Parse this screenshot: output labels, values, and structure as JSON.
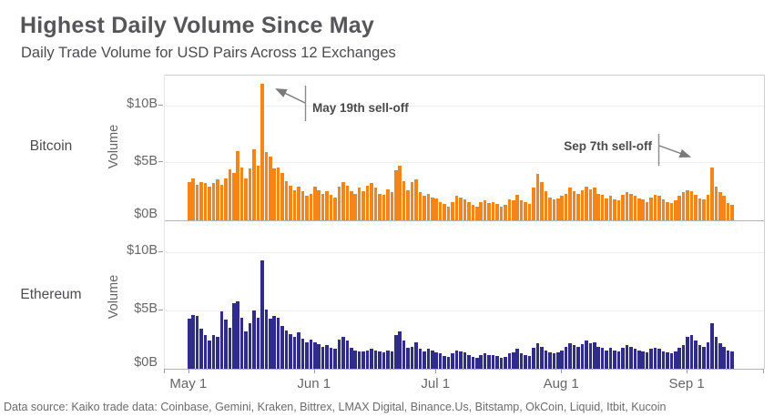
{
  "header": {
    "title": "Highest Daily Volume Since May",
    "subtitle": "Daily Trade Volume for USD Pairs Across 12 Exchanges"
  },
  "footer": {
    "text": "Data source: Kaiko trade data: Coinbase, Gemini, Kraken, Bittrex, LMAX Digital, Binance.Us, Bitstamp, OkCoin, Liquid, Itbit, Kucoin"
  },
  "colors": {
    "bitcoin": "#F58518",
    "ethereum": "#2F2C8B",
    "grid": "#EFEFEF",
    "axis": "#B3B3B3",
    "arrow": "#7A7A7A",
    "text": "#666666"
  },
  "chart_data": [
    {
      "type": "bar",
      "name": "bitcoin-daily-volume",
      "row_label": "Bitcoin",
      "ylabel": "Volume",
      "unit": "$B",
      "yticks": [
        "$10B",
        "$5B",
        "$0B"
      ],
      "ylim": [
        0,
        12.5
      ],
      "x_start": "May 1",
      "xticks": [
        "May 1",
        "Jun 1",
        "Jul 1",
        "Aug 1",
        "Sep 1"
      ],
      "xtick_days": [
        0,
        31,
        61,
        92,
        123
      ],
      "annotation": {
        "label": "May 19th sell-off",
        "day": "May 19",
        "value": 11.8
      },
      "values": [
        3.3,
        3.6,
        3.1,
        3.3,
        3.2,
        2.9,
        3.2,
        3.5,
        3.1,
        3.6,
        4.4,
        4.1,
        6.0,
        4.6,
        3.6,
        4.5,
        6.1,
        4.7,
        11.8,
        5.9,
        5.5,
        4.5,
        4.6,
        4.1,
        3.4,
        3.0,
        2.6,
        2.9,
        2.5,
        2.1,
        2.3,
        2.9,
        2.6,
        2.3,
        2.5,
        2.2,
        2.0,
        2.9,
        3.3,
        3.0,
        2.5,
        2.3,
        2.8,
        2.5,
        3.0,
        3.2,
        2.8,
        2.3,
        2.2,
        2.7,
        2.4,
        4.3,
        4.7,
        3.4,
        2.6,
        3.3,
        3.5,
        2.4,
        2.1,
        2.3,
        2.0,
        1.9,
        1.6,
        1.4,
        1.2,
        1.6,
        2.1,
        2.0,
        1.8,
        1.6,
        1.3,
        1.2,
        1.6,
        1.7,
        1.5,
        1.6,
        1.4,
        1.2,
        1.3,
        1.8,
        1.7,
        2.2,
        1.7,
        1.6,
        1.4,
        2.8,
        4.0,
        3.3,
        2.5,
        2.0,
        1.8,
        1.9,
        2.1,
        2.3,
        2.8,
        2.5,
        2.3,
        2.6,
        2.9,
        2.7,
        2.8,
        2.3,
        2.2,
        1.9,
        2.1,
        1.8,
        1.7,
        2.2,
        2.4,
        2.3,
        2.1,
        1.9,
        1.8,
        1.6,
        2.0,
        2.2,
        2.1,
        1.8,
        1.6,
        1.5,
        1.7,
        2.1,
        2.4,
        2.6,
        2.5,
        2.2,
        1.9,
        1.8,
        2.2,
        4.6,
        2.9,
        2.4,
        2.1,
        1.5,
        1.3
      ]
    },
    {
      "type": "bar",
      "name": "ethereum-daily-volume",
      "row_label": "Ethereum",
      "ylabel": "Volume",
      "unit": "$B",
      "yticks": [
        "$10B",
        "$5B",
        "$0B"
      ],
      "ylim": [
        0,
        12.1
      ],
      "x_start": "May 1",
      "xticks": [
        "May 1",
        "Jun 1",
        "Jul 1",
        "Aug 1",
        "Sep 1"
      ],
      "xtick_days": [
        0,
        31,
        61,
        92,
        123
      ],
      "annotation": {
        "label": "Sep 7th sell-off",
        "day": "Sep 7",
        "value": 3.9
      },
      "values": [
        4.3,
        4.6,
        4.5,
        3.4,
        2.9,
        2.4,
        2.9,
        2.7,
        4.9,
        4.2,
        3.5,
        5.6,
        5.8,
        4.4,
        3.2,
        3.9,
        5.0,
        4.4,
        9.3,
        5.1,
        4.3,
        4.5,
        4.4,
        3.7,
        3.3,
        3.0,
        2.7,
        3.1,
        2.6,
        2.3,
        2.5,
        2.3,
        2.1,
        1.9,
        2.0,
        1.8,
        1.7,
        2.5,
        2.7,
        2.4,
        1.8,
        1.6,
        1.5,
        1.5,
        1.6,
        1.7,
        1.6,
        1.5,
        1.4,
        1.6,
        1.5,
        2.9,
        3.2,
        2.4,
        1.8,
        1.9,
        2.3,
        1.7,
        1.5,
        1.7,
        1.6,
        1.4,
        1.3,
        1.1,
        1.0,
        1.3,
        1.6,
        1.5,
        1.4,
        1.2,
        1.0,
        0.9,
        1.2,
        1.3,
        1.2,
        1.2,
        1.1,
        0.9,
        1.0,
        1.3,
        1.4,
        1.7,
        1.3,
        1.2,
        1.1,
        1.8,
        2.2,
        1.9,
        1.6,
        1.4,
        1.3,
        1.4,
        1.6,
        1.9,
        2.2,
        2.0,
        1.9,
        2.1,
        2.4,
        2.2,
        2.3,
        1.9,
        1.8,
        1.6,
        1.8,
        1.6,
        1.5,
        1.8,
        2.0,
        1.9,
        1.7,
        1.6,
        1.5,
        1.4,
        1.7,
        1.8,
        1.7,
        1.5,
        1.4,
        1.3,
        1.5,
        1.8,
        2.0,
        2.7,
        2.9,
        2.4,
        2.0,
        1.9,
        2.3,
        3.9,
        2.7,
        2.2,
        1.9,
        1.6,
        1.5
      ]
    }
  ]
}
